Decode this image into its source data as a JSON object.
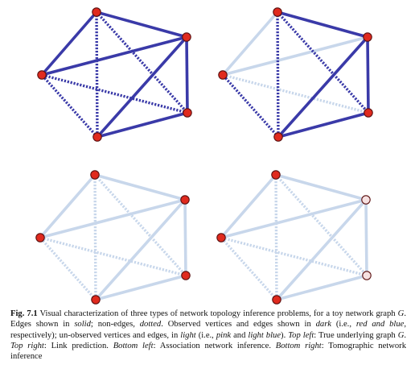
{
  "colors": {
    "observed_edge": "#3a3aa8",
    "unobserved_edge": "#c8d7eb",
    "observed_vertex": "#e02a1e",
    "unobserved_vertex": "#f6e0e0",
    "vertex_stroke": "#5a1010"
  },
  "graph": {
    "vertices": [
      "v1",
      "v2",
      "v3",
      "v4",
      "v5"
    ],
    "edges": [
      [
        "v1",
        "v2"
      ],
      [
        "v1",
        "v5"
      ],
      [
        "v2",
        "v3"
      ],
      [
        "v2",
        "v4"
      ],
      [
        "v2",
        "v5"
      ],
      [
        "v3",
        "v4"
      ]
    ],
    "non_edges": [
      [
        "v1",
        "v3"
      ],
      [
        "v1",
        "v4"
      ],
      [
        "v3",
        "v5"
      ],
      [
        "v4",
        "v5"
      ]
    ]
  },
  "panels": [
    {
      "id": "top-left",
      "observed_vertices": [
        "v1",
        "v2",
        "v3",
        "v4",
        "v5"
      ],
      "observed_pairs": [
        [
          "v1",
          "v2"
        ],
        [
          "v1",
          "v5"
        ],
        [
          "v2",
          "v3"
        ],
        [
          "v2",
          "v4"
        ],
        [
          "v2",
          "v5"
        ],
        [
          "v3",
          "v4"
        ],
        [
          "v1",
          "v3"
        ],
        [
          "v1",
          "v4"
        ],
        [
          "v3",
          "v5"
        ],
        [
          "v4",
          "v5"
        ]
      ]
    },
    {
      "id": "top-right",
      "observed_vertices": [
        "v1",
        "v2",
        "v3",
        "v4",
        "v5"
      ],
      "observed_pairs": [
        [
          "v1",
          "v2"
        ],
        [
          "v2",
          "v3"
        ],
        [
          "v2",
          "v4"
        ],
        [
          "v3",
          "v4"
        ],
        [
          "v1",
          "v3"
        ],
        [
          "v1",
          "v4"
        ],
        [
          "v4",
          "v5"
        ]
      ]
    },
    {
      "id": "bottom-left",
      "observed_vertices": [
        "v1",
        "v2",
        "v3",
        "v4",
        "v5"
      ],
      "observed_pairs": []
    },
    {
      "id": "bottom-right",
      "observed_vertices": [
        "v1",
        "v4",
        "v5"
      ],
      "observed_pairs": []
    }
  ],
  "caption": {
    "label": "Fig. 7.1",
    "t1": " Visual characterization of three types of network topology inference problems, for a toy network graph ",
    "g1": "G",
    "t2": ". Edges shown in ",
    "solid": "solid",
    "t3": "; non-edges, ",
    "dotted": "dotted",
    "t4": ". Observed vertices and edges shown in ",
    "dark": "dark",
    "t5": " (i.e., ",
    "red_blue": "red and blue",
    "t6": ", respectively); un-observed vertices and edges, in ",
    "light": "light",
    "t7": " (i.e., ",
    "pink": "pink",
    "t8": " and ",
    "light_blue": "light blue",
    "t9": "). ",
    "top_left": "Top left",
    "t10": ": True underlying graph ",
    "g2": "G",
    "t11": ". ",
    "top_right": "Top right",
    "t12": ": Link prediction. ",
    "bottom_left": "Bottom left",
    "t13": ": Association network inference. ",
    "bottom_right": "Bottom right",
    "t14": ": Tomographic network inference"
  }
}
